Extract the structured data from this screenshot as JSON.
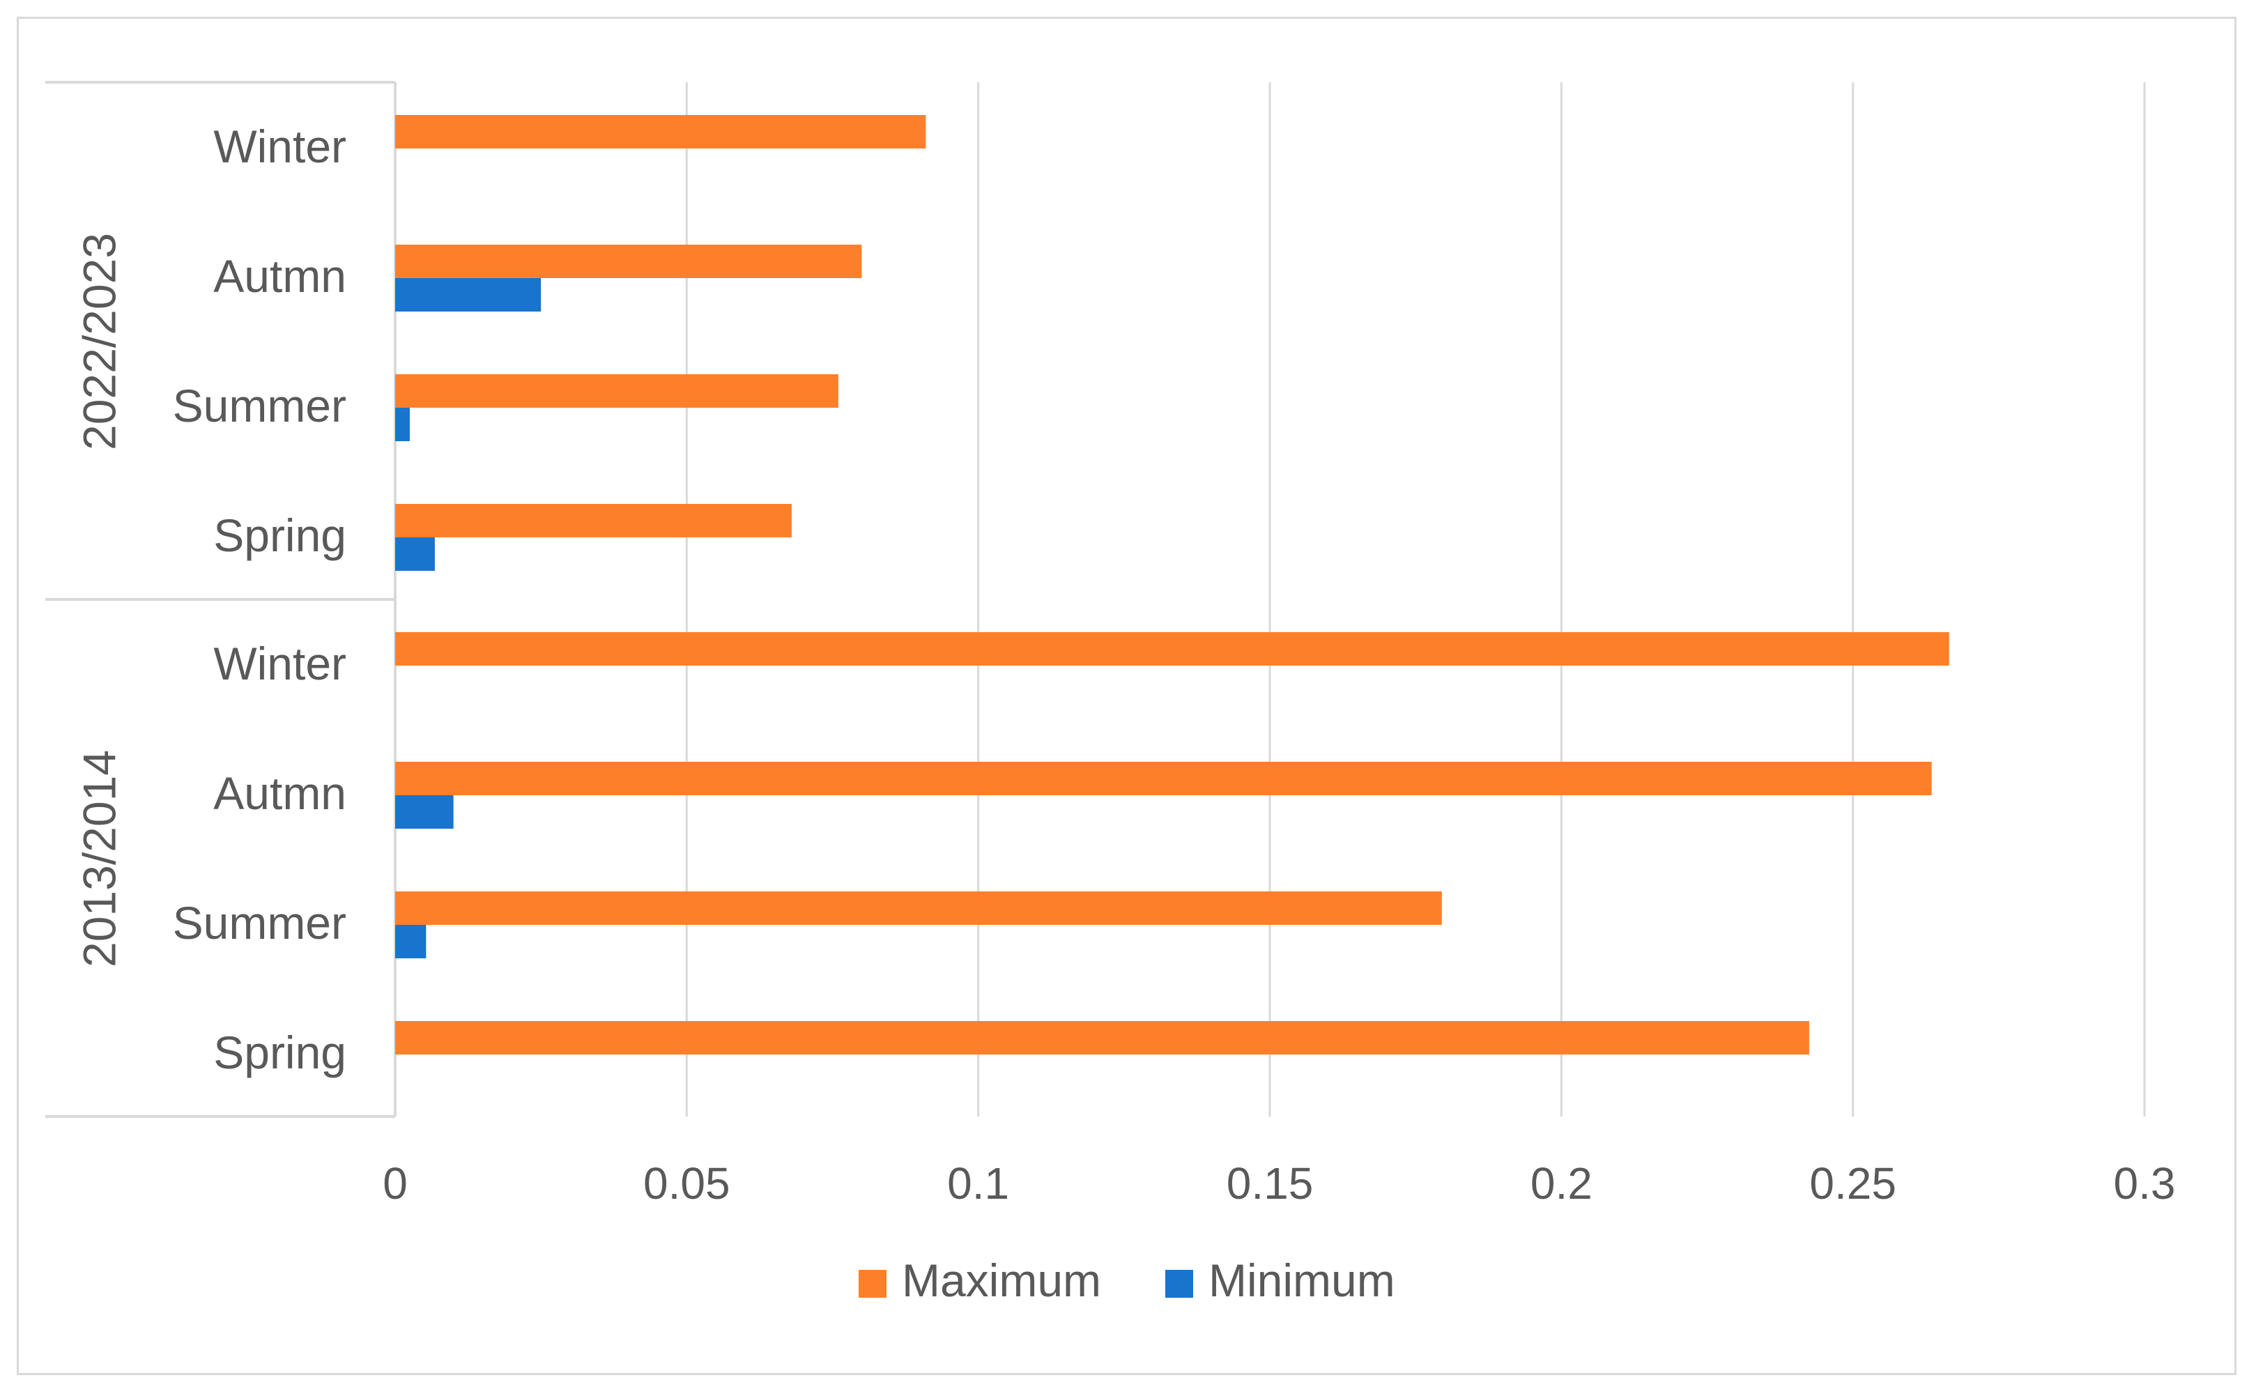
{
  "chart_data": {
    "type": "bar",
    "orientation": "horizontal",
    "xlim": [
      0,
      0.3
    ],
    "x_ticks": [
      "0",
      "0.05",
      "0.1",
      "0.15",
      "0.2",
      "0.25",
      "0.3"
    ],
    "x_tick_values": [
      0,
      0.05,
      0.1,
      0.15,
      0.2,
      0.25,
      0.3
    ],
    "grid": true,
    "legend_position": "bottom",
    "groups": [
      {
        "label": "2022/2023",
        "categories": [
          "Winter",
          "Autmn",
          "Summer",
          "Spring"
        ],
        "series_values": {
          "Maximum": [
            0.091,
            0.08,
            0.076,
            0.068
          ],
          "Minimum": [
            0,
            0.025,
            0.0025,
            0.0068
          ]
        }
      },
      {
        "label": "2013/2014",
        "categories": [
          "Winter",
          "Autmn",
          "Summer",
          "Spring"
        ],
        "series_values": {
          "Maximum": [
            0.2665,
            0.2635,
            0.1795,
            0.2425
          ],
          "Minimum": [
            0,
            0.01,
            0.0053,
            0
          ]
        }
      }
    ],
    "series": [
      {
        "name": "Maximum",
        "color": "#fe7f2a"
      },
      {
        "name": "Minimum",
        "color": "#1874cd"
      }
    ]
  }
}
